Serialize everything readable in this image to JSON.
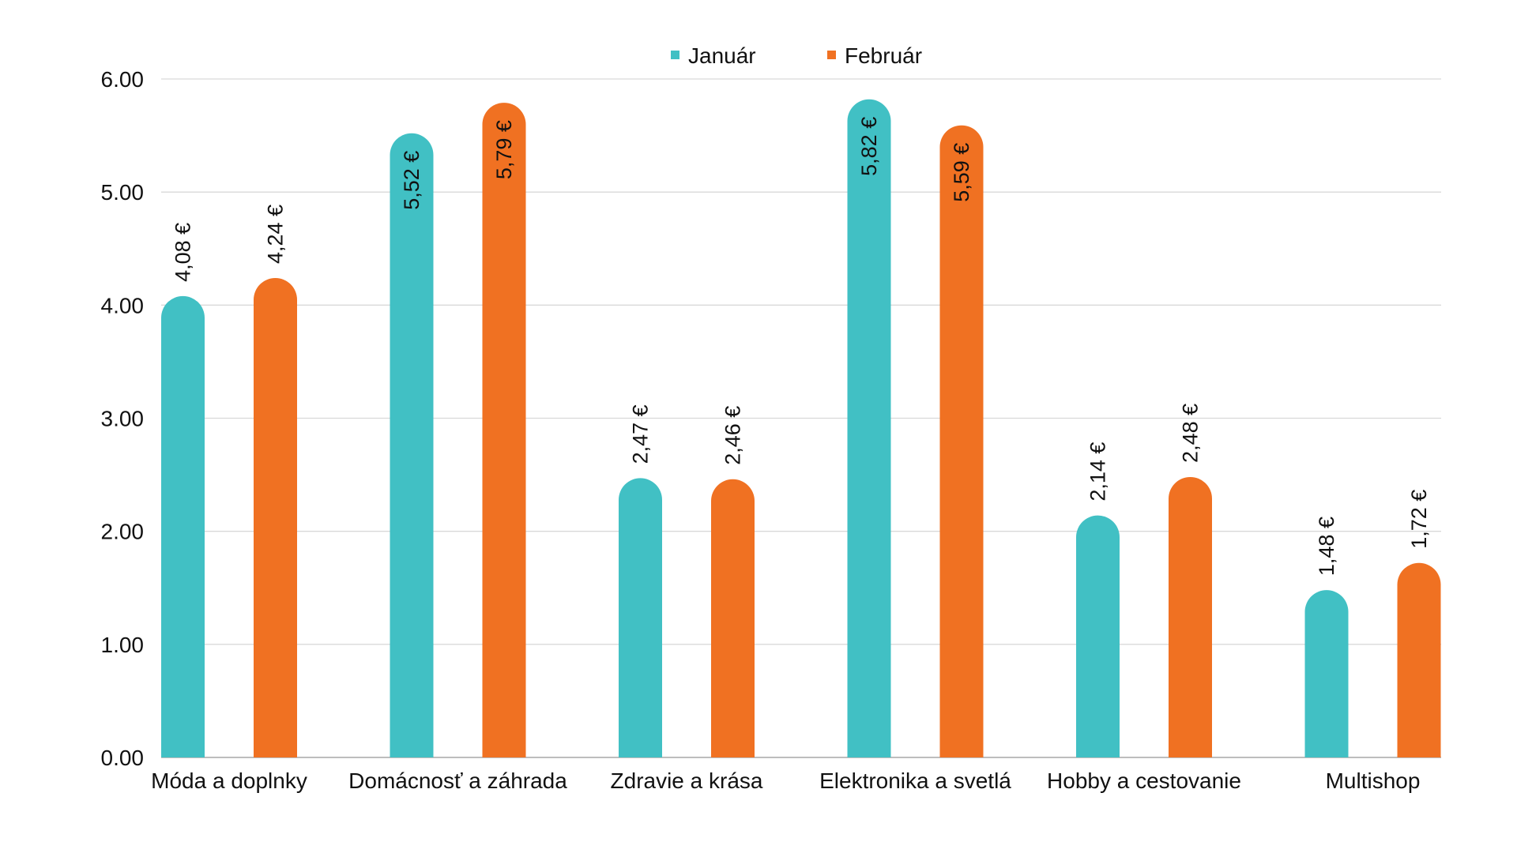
{
  "chart_data": {
    "type": "bar",
    "title": "",
    "xlabel": "",
    "ylabel": "",
    "ylim": [
      0,
      6
    ],
    "yticks": [
      "0.00",
      "1.00",
      "2.00",
      "3.00",
      "4.00",
      "5.00",
      "6.00"
    ],
    "grid": true,
    "legend_position": "top-center",
    "categories": [
      "Móda a doplnky",
      "Domácnosť a záhrada",
      "Zdravie a krása",
      "Elektronika a svetlá",
      "Hobby a cestovanie",
      "Multishop"
    ],
    "series": [
      {
        "name": "Január",
        "color": "#41c0c4",
        "values": [
          4.08,
          5.52,
          2.47,
          5.82,
          2.14,
          1.48
        ],
        "labels": [
          "4,08 €",
          "5,52 €",
          "2,47 €",
          "5,82 €",
          "2,14 €",
          "1,48 €"
        ]
      },
      {
        "name": "Február",
        "color": "#f07122",
        "values": [
          4.24,
          5.79,
          2.46,
          5.59,
          2.48,
          1.72
        ],
        "labels": [
          "4,24 €",
          "5,79 €",
          "2,46 €",
          "5,59 €",
          "2,48 €",
          "1,72 €"
        ]
      }
    ]
  }
}
